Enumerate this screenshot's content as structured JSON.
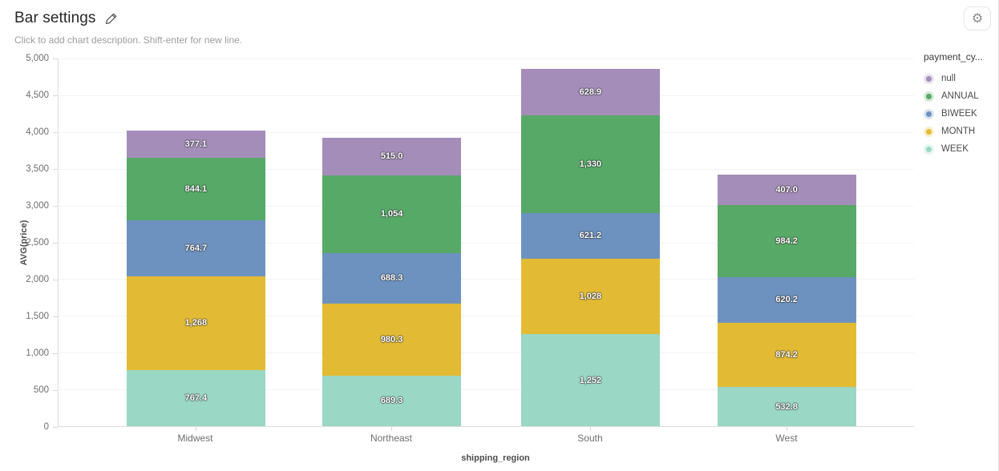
{
  "header": {
    "title": "Bar settings",
    "description_placeholder": "Click to add chart description. Shift-enter for new line.",
    "gear_icon": "⚙"
  },
  "chart_data": {
    "type": "bar",
    "stacked": true,
    "title": "Bar settings",
    "xlabel": "shipping_region",
    "ylabel": "AVG(price)",
    "categories": [
      "Midwest",
      "Northeast",
      "South",
      "West"
    ],
    "series": [
      {
        "name": "WEEK",
        "color": "#9ad7c4",
        "values": [
          767.4,
          689.3,
          1252,
          532.8
        ],
        "labels": [
          "767.4",
          "689.3",
          "1,252",
          "532.8"
        ]
      },
      {
        "name": "MONTH",
        "color": "#e3ba33",
        "values": [
          1268,
          980.3,
          1028,
          874.2
        ],
        "labels": [
          "1,268",
          "980.3",
          "1,028",
          "874.2"
        ]
      },
      {
        "name": "BIWEEK",
        "color": "#6d92c0",
        "values": [
          764.7,
          688.3,
          621.2,
          620.2
        ],
        "labels": [
          "764.7",
          "688.3",
          "621.2",
          "620.2"
        ]
      },
      {
        "name": "ANNUAL",
        "color": "#56a966",
        "values": [
          844.1,
          1054,
          1330,
          984.2
        ],
        "labels": [
          "844.1",
          "1,054",
          "1,330",
          "984.2"
        ]
      },
      {
        "name": "null",
        "color": "#a58dba",
        "values": [
          377.1,
          515.0,
          628.9,
          407.0
        ],
        "labels": [
          "377.1",
          "515.0",
          "628.9",
          "407.0"
        ]
      }
    ],
    "stack_order_bottom_to_top": [
      "WEEK",
      "MONTH",
      "BIWEEK",
      "ANNUAL",
      "null"
    ],
    "ylim": [
      0,
      5000
    ],
    "ytick_step": 500,
    "yticks": [
      "0",
      "500",
      "1,000",
      "1,500",
      "2,000",
      "2,500",
      "3,000",
      "3,500",
      "4,000",
      "4,500",
      "5,000"
    ],
    "grid": true,
    "legend_title": "payment_cy...",
    "legend_position": "right",
    "legend_order": [
      "null",
      "ANNUAL",
      "BIWEEK",
      "MONTH",
      "WEEK"
    ]
  }
}
